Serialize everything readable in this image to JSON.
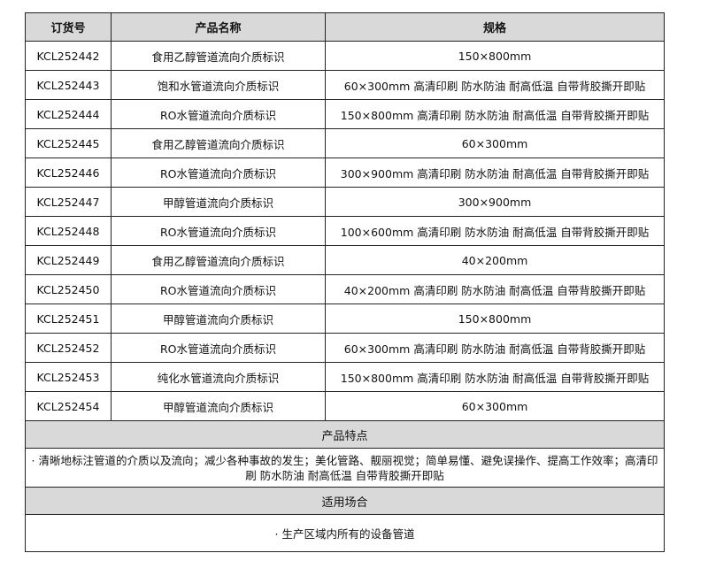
{
  "table": {
    "headers": [
      "订货号",
      "产品名称",
      "规格"
    ],
    "rows": [
      [
        "KCL252442",
        "食用乙醇管道流向介质标识",
        "150×800mm"
      ],
      [
        "KCL252443",
        "饱和水管道流向介质标识",
        "60×300mm 高清印刷 防水防油 耐高低温 自带背胶撕开即贴"
      ],
      [
        "KCL252444",
        "RO水管道流向介质标识",
        "150×800mm 高清印刷 防水防油 耐高低温 自带背胶撕开即贴"
      ],
      [
        "KCL252445",
        "食用乙醇管道流向介质标识",
        "60×300mm"
      ],
      [
        "KCL252446",
        "RO水管道流向介质标识",
        "300×900mm 高清印刷 防水防油 耐高低温 自带背胶撕开即贴"
      ],
      [
        "KCL252447",
        "甲醇管道流向介质标识",
        "300×900mm"
      ],
      [
        "KCL252448",
        "RO水管道流向介质标识",
        "100×600mm 高清印刷 防水防油 耐高低温 自带背胶撕开即贴"
      ],
      [
        "KCL252449",
        "食用乙醇管道流向介质标识",
        "40×200mm"
      ],
      [
        "KCL252450",
        "RO水管道流向介质标识",
        "40×200mm 高清印刷 防水防油 耐高低温 自带背胶撕开即贴"
      ],
      [
        "KCL252451",
        "甲醇管道流向介质标识",
        "150×800mm"
      ],
      [
        "KCL252452",
        "RO水管道流向介质标识",
        "60×300mm 高清印刷 防水防油 耐高低温 自带背胶撕开即贴"
      ],
      [
        "KCL252453",
        "纯化水管道流向介质标识",
        "150×800mm 高清印刷 防水防油 耐高低温 自带背胶撕开即贴"
      ],
      [
        "KCL252454",
        "甲醇管道流向介质标识",
        "60×300mm"
      ]
    ]
  },
  "features": {
    "title": "产品特点",
    "text": "· 清晰地标注管道的介质以及流向；减少各种事故的发生；美化管路、靓丽视觉；简单易懂、避免误操作、提高工作效率；高清印刷 防水防油 耐高低温 自带背胶撕开即贴"
  },
  "usage": {
    "title": "适用场合",
    "text": "· 生产区域内所有的设备管道"
  },
  "colors": {
    "header_bg": "#d9d9d9",
    "border": "#222222"
  }
}
